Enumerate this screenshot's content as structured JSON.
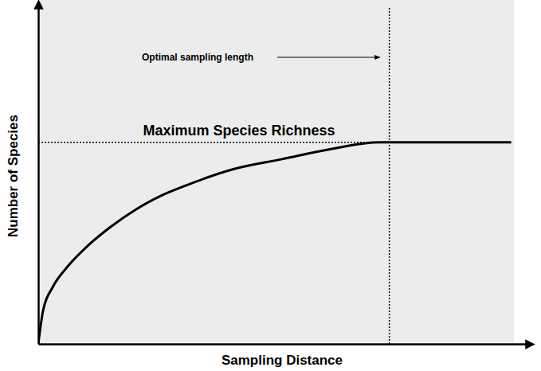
{
  "chart_data": {
    "type": "line",
    "x_label": "Sampling Distance",
    "y_label": "Number of Species",
    "x": [
      0,
      1,
      3,
      6,
      10,
      15,
      20,
      25,
      30,
      40,
      50,
      60,
      70,
      80,
      90,
      97
    ],
    "values": [
      0,
      10,
      17,
      23,
      29,
      35,
      40,
      44,
      47,
      52,
      55,
      58,
      60,
      60,
      60,
      60
    ],
    "color": "#000000",
    "xlim": [
      0,
      100
    ],
    "ylim": [
      0,
      100
    ],
    "tick_labels": false,
    "grid": false,
    "hlines": [
      {
        "value": 60,
        "label": "Maximum Species Richness"
      }
    ],
    "vlines": [
      {
        "value": 72,
        "label": "Optimal sampling length"
      }
    ]
  }
}
